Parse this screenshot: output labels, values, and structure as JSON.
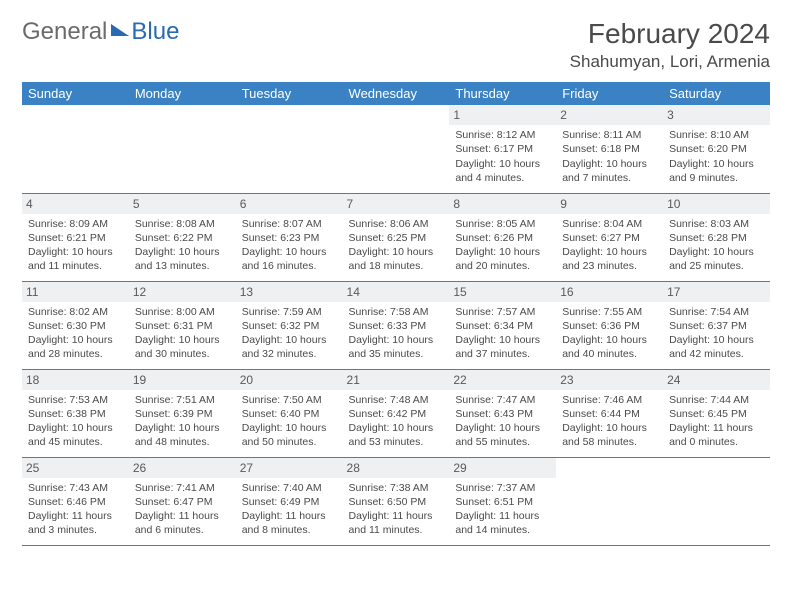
{
  "logo": {
    "general": "General",
    "blue": "Blue"
  },
  "title": "February 2024",
  "location": "Shahumyan, Lori, Armenia",
  "colors": {
    "header_bg": "#3b82c4",
    "header_text": "#ffffff",
    "daynum_bg": "#eef0f2",
    "border": "#3b82c4",
    "text": "#4a4a4a",
    "logo_gray": "#6b6b6b",
    "logo_blue": "#2a6ab0"
  },
  "day_headers": [
    "Sunday",
    "Monday",
    "Tuesday",
    "Wednesday",
    "Thursday",
    "Friday",
    "Saturday"
  ],
  "weeks": [
    [
      {
        "n": "",
        "l1": "",
        "l2": "",
        "l3": "",
        "l4": ""
      },
      {
        "n": "",
        "l1": "",
        "l2": "",
        "l3": "",
        "l4": ""
      },
      {
        "n": "",
        "l1": "",
        "l2": "",
        "l3": "",
        "l4": ""
      },
      {
        "n": "",
        "l1": "",
        "l2": "",
        "l3": "",
        "l4": ""
      },
      {
        "n": "1",
        "l1": "Sunrise: 8:12 AM",
        "l2": "Sunset: 6:17 PM",
        "l3": "Daylight: 10 hours",
        "l4": "and 4 minutes."
      },
      {
        "n": "2",
        "l1": "Sunrise: 8:11 AM",
        "l2": "Sunset: 6:18 PM",
        "l3": "Daylight: 10 hours",
        "l4": "and 7 minutes."
      },
      {
        "n": "3",
        "l1": "Sunrise: 8:10 AM",
        "l2": "Sunset: 6:20 PM",
        "l3": "Daylight: 10 hours",
        "l4": "and 9 minutes."
      }
    ],
    [
      {
        "n": "4",
        "l1": "Sunrise: 8:09 AM",
        "l2": "Sunset: 6:21 PM",
        "l3": "Daylight: 10 hours",
        "l4": "and 11 minutes."
      },
      {
        "n": "5",
        "l1": "Sunrise: 8:08 AM",
        "l2": "Sunset: 6:22 PM",
        "l3": "Daylight: 10 hours",
        "l4": "and 13 minutes."
      },
      {
        "n": "6",
        "l1": "Sunrise: 8:07 AM",
        "l2": "Sunset: 6:23 PM",
        "l3": "Daylight: 10 hours",
        "l4": "and 16 minutes."
      },
      {
        "n": "7",
        "l1": "Sunrise: 8:06 AM",
        "l2": "Sunset: 6:25 PM",
        "l3": "Daylight: 10 hours",
        "l4": "and 18 minutes."
      },
      {
        "n": "8",
        "l1": "Sunrise: 8:05 AM",
        "l2": "Sunset: 6:26 PM",
        "l3": "Daylight: 10 hours",
        "l4": "and 20 minutes."
      },
      {
        "n": "9",
        "l1": "Sunrise: 8:04 AM",
        "l2": "Sunset: 6:27 PM",
        "l3": "Daylight: 10 hours",
        "l4": "and 23 minutes."
      },
      {
        "n": "10",
        "l1": "Sunrise: 8:03 AM",
        "l2": "Sunset: 6:28 PM",
        "l3": "Daylight: 10 hours",
        "l4": "and 25 minutes."
      }
    ],
    [
      {
        "n": "11",
        "l1": "Sunrise: 8:02 AM",
        "l2": "Sunset: 6:30 PM",
        "l3": "Daylight: 10 hours",
        "l4": "and 28 minutes."
      },
      {
        "n": "12",
        "l1": "Sunrise: 8:00 AM",
        "l2": "Sunset: 6:31 PM",
        "l3": "Daylight: 10 hours",
        "l4": "and 30 minutes."
      },
      {
        "n": "13",
        "l1": "Sunrise: 7:59 AM",
        "l2": "Sunset: 6:32 PM",
        "l3": "Daylight: 10 hours",
        "l4": "and 32 minutes."
      },
      {
        "n": "14",
        "l1": "Sunrise: 7:58 AM",
        "l2": "Sunset: 6:33 PM",
        "l3": "Daylight: 10 hours",
        "l4": "and 35 minutes."
      },
      {
        "n": "15",
        "l1": "Sunrise: 7:57 AM",
        "l2": "Sunset: 6:34 PM",
        "l3": "Daylight: 10 hours",
        "l4": "and 37 minutes."
      },
      {
        "n": "16",
        "l1": "Sunrise: 7:55 AM",
        "l2": "Sunset: 6:36 PM",
        "l3": "Daylight: 10 hours",
        "l4": "and 40 minutes."
      },
      {
        "n": "17",
        "l1": "Sunrise: 7:54 AM",
        "l2": "Sunset: 6:37 PM",
        "l3": "Daylight: 10 hours",
        "l4": "and 42 minutes."
      }
    ],
    [
      {
        "n": "18",
        "l1": "Sunrise: 7:53 AM",
        "l2": "Sunset: 6:38 PM",
        "l3": "Daylight: 10 hours",
        "l4": "and 45 minutes."
      },
      {
        "n": "19",
        "l1": "Sunrise: 7:51 AM",
        "l2": "Sunset: 6:39 PM",
        "l3": "Daylight: 10 hours",
        "l4": "and 48 minutes."
      },
      {
        "n": "20",
        "l1": "Sunrise: 7:50 AM",
        "l2": "Sunset: 6:40 PM",
        "l3": "Daylight: 10 hours",
        "l4": "and 50 minutes."
      },
      {
        "n": "21",
        "l1": "Sunrise: 7:48 AM",
        "l2": "Sunset: 6:42 PM",
        "l3": "Daylight: 10 hours",
        "l4": "and 53 minutes."
      },
      {
        "n": "22",
        "l1": "Sunrise: 7:47 AM",
        "l2": "Sunset: 6:43 PM",
        "l3": "Daylight: 10 hours",
        "l4": "and 55 minutes."
      },
      {
        "n": "23",
        "l1": "Sunrise: 7:46 AM",
        "l2": "Sunset: 6:44 PM",
        "l3": "Daylight: 10 hours",
        "l4": "and 58 minutes."
      },
      {
        "n": "24",
        "l1": "Sunrise: 7:44 AM",
        "l2": "Sunset: 6:45 PM",
        "l3": "Daylight: 11 hours",
        "l4": "and 0 minutes."
      }
    ],
    [
      {
        "n": "25",
        "l1": "Sunrise: 7:43 AM",
        "l2": "Sunset: 6:46 PM",
        "l3": "Daylight: 11 hours",
        "l4": "and 3 minutes."
      },
      {
        "n": "26",
        "l1": "Sunrise: 7:41 AM",
        "l2": "Sunset: 6:47 PM",
        "l3": "Daylight: 11 hours",
        "l4": "and 6 minutes."
      },
      {
        "n": "27",
        "l1": "Sunrise: 7:40 AM",
        "l2": "Sunset: 6:49 PM",
        "l3": "Daylight: 11 hours",
        "l4": "and 8 minutes."
      },
      {
        "n": "28",
        "l1": "Sunrise: 7:38 AM",
        "l2": "Sunset: 6:50 PM",
        "l3": "Daylight: 11 hours",
        "l4": "and 11 minutes."
      },
      {
        "n": "29",
        "l1": "Sunrise: 7:37 AM",
        "l2": "Sunset: 6:51 PM",
        "l3": "Daylight: 11 hours",
        "l4": "and 14 minutes."
      },
      {
        "n": "",
        "l1": "",
        "l2": "",
        "l3": "",
        "l4": ""
      },
      {
        "n": "",
        "l1": "",
        "l2": "",
        "l3": "",
        "l4": ""
      }
    ]
  ]
}
